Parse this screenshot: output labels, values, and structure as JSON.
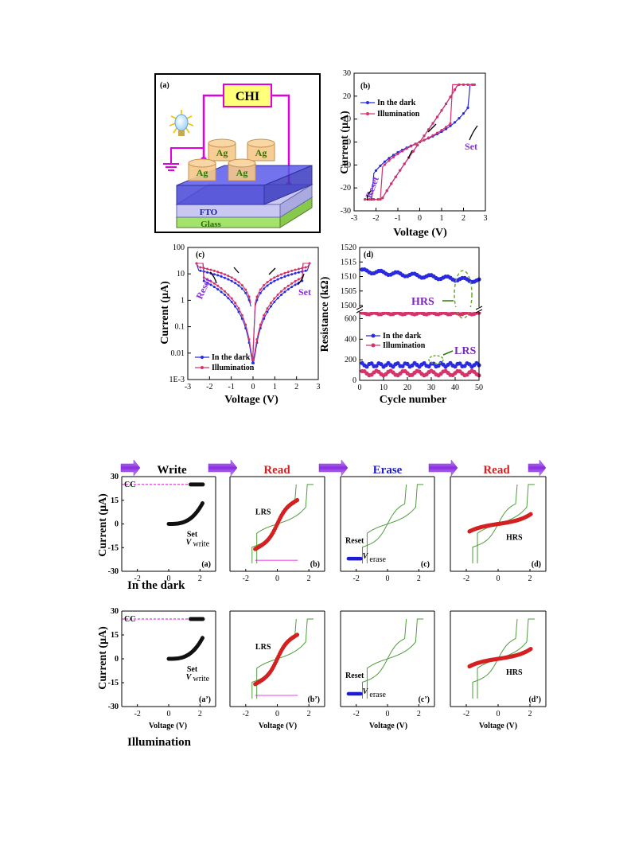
{
  "figure_top": {
    "panel_a": {
      "label": "(a)",
      "box_label": "CHI",
      "electrode_label": "Ag",
      "layers": [
        "FTO",
        "Glass"
      ]
    },
    "panel_b": {
      "label": "(b)",
      "annotations": [
        "Set",
        "Reset"
      ]
    },
    "panel_c": {
      "label": "(c)",
      "annotations": [
        "Set",
        "Reset"
      ]
    },
    "panel_d": {
      "label": "(d)",
      "annotations": [
        "HRS",
        "LRS"
      ]
    }
  },
  "figure_bottom": {
    "steps": [
      "Write",
      "Read",
      "Erase",
      "Read"
    ],
    "step_colors": [
      "#000000",
      "#d42020",
      "#1c1cd0",
      "#d42020"
    ],
    "row_labels": [
      "In the dark",
      "Illumination"
    ],
    "panel_labels_dark": [
      "(a)",
      "(b)",
      "(c)",
      "(d)"
    ],
    "panel_labels_light": [
      "(a’)",
      "(b’)",
      "(c’)",
      "(d’)"
    ],
    "annotations": {
      "cc": "CC",
      "set": "Set",
      "lrs": "LRS",
      "reset": "Reset",
      "hrs": "HRS",
      "v": "V",
      "write_sub": "write",
      "erase_sub": "erase"
    }
  },
  "chart_data": [
    {
      "type": "line",
      "panel": "(b)",
      "xlabel": "Voltage (V)",
      "ylabel": "Current (μA)",
      "xlim": [
        -3,
        3
      ],
      "ylim": [
        -30,
        30
      ],
      "xticks": [
        "-3",
        "-2",
        "-1",
        "0",
        "1",
        "2",
        "3"
      ],
      "yticks": [
        "30",
        "20",
        "10",
        "0",
        "-10",
        "-20",
        "-30"
      ],
      "legend": "top-left",
      "series": [
        {
          "name": "In the dark",
          "color": "#2a2ae0"
        },
        {
          "name": "Illumination",
          "color": "#d6336c"
        }
      ],
      "compliance_current": 25,
      "set_voltage": {
        "In the dark": 2.3,
        "Illumination": 1.5
      },
      "reset_voltage": {
        "In the dark": -2.2,
        "Illumination": -1.8
      }
    },
    {
      "type": "line",
      "panel": "(c)",
      "xlabel": "Voltage (V)",
      "ylabel": "Current (μA)",
      "xlim": [
        -3,
        3
      ],
      "ylim": [
        0.001,
        100
      ],
      "yscale": "log",
      "xticks": [
        "-3",
        "-2",
        "-1",
        "0",
        "1",
        "2",
        "3"
      ],
      "yticks": [
        "100",
        "10",
        "1",
        "0.1",
        "0.01",
        "1E-3"
      ],
      "legend": "bottom-left",
      "series": [
        {
          "name": "In the dark",
          "color": "#2a2ae0"
        },
        {
          "name": "Illumination",
          "color": "#d6336c"
        }
      ]
    },
    {
      "type": "scatter",
      "panel": "(d)",
      "xlabel": "Cycle number",
      "ylabel": "Resistance (kΩ)",
      "xlim": [
        0,
        50
      ],
      "xticks": [
        "0",
        "10",
        "20",
        "30",
        "40",
        "50"
      ],
      "yticks": [
        "1520",
        "1515",
        "1510",
        "1505",
        "1500",
        "600",
        "400",
        "200",
        "0"
      ],
      "axis_break": true,
      "legend": "middle-left",
      "series": [
        {
          "name": "In the dark",
          "state": "HRS",
          "color": "#2a2ae0",
          "mean": 1510.5
        },
        {
          "name": "Illumination",
          "state": "HRS",
          "color": "#d6336c",
          "mean": 650
        },
        {
          "name": "In the dark",
          "state": "LRS",
          "color": "#2a2ae0",
          "mean": 150
        },
        {
          "name": "Illumination",
          "state": "LRS",
          "color": "#d6336c",
          "mean": 70
        }
      ]
    },
    {
      "type": "line",
      "panel": "bottom grid",
      "xlabel": "Voltage (V)",
      "ylabel": "Current (μA)",
      "xlim": [
        -3,
        3
      ],
      "ylim": [
        -30,
        30
      ],
      "xticks": [
        "-2",
        "0",
        "2"
      ],
      "yticks": [
        "30",
        "15",
        "0",
        "-15",
        "-30"
      ],
      "compliance_current": 25
    }
  ]
}
